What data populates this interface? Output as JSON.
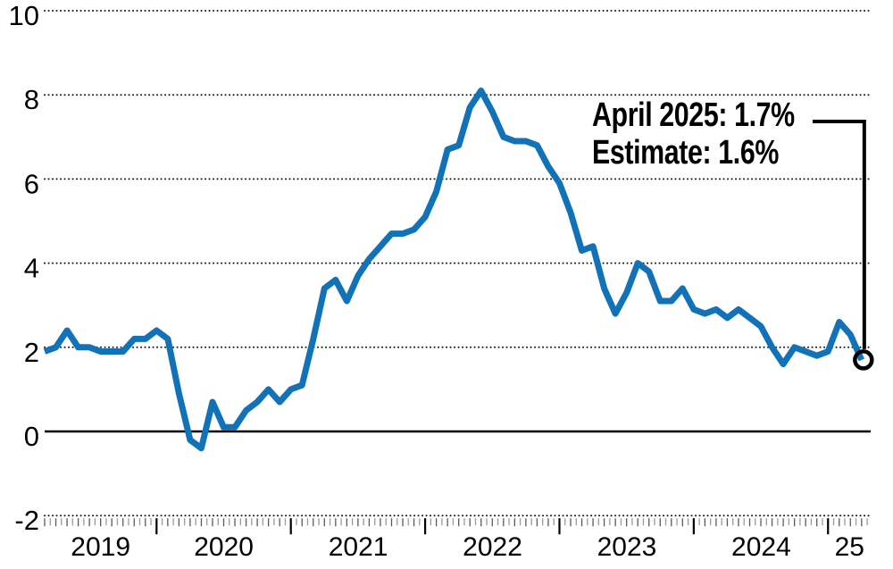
{
  "chart_data": {
    "type": "line",
    "title": "",
    "xlabel": "",
    "ylabel": "",
    "x_start_month": "2019-03",
    "x_end_month": "2025-04",
    "x_tick_labels": [
      "2019",
      "2020",
      "2021",
      "2022",
      "2023",
      "2024",
      "25"
    ],
    "y_ticks": [
      {
        "label": "10",
        "value": 10,
        "style": "dotted"
      },
      {
        "label": "8",
        "value": 8,
        "style": "dotted"
      },
      {
        "label": "6",
        "value": 6,
        "style": "dotted"
      },
      {
        "label": "4",
        "value": 4,
        "style": "dotted"
      },
      {
        "label": "2",
        "value": 2,
        "style": "dotted"
      },
      {
        "label": "0",
        "value": 0,
        "style": "solid"
      },
      {
        "label": "-2",
        "value": -2,
        "style": "dotted"
      }
    ],
    "ylim": [
      -2,
      10
    ],
    "grid": "horizontal-dotted",
    "series": [
      {
        "name": "inflation-yoy-percent",
        "color": "#1272b7",
        "values": [
          1.9,
          2.0,
          2.4,
          2.0,
          2.0,
          1.9,
          1.9,
          1.9,
          2.2,
          2.2,
          2.4,
          2.2,
          0.9,
          -0.2,
          -0.4,
          0.7,
          0.1,
          0.1,
          0.5,
          0.7,
          1.0,
          0.7,
          1.0,
          1.1,
          2.2,
          3.4,
          3.6,
          3.1,
          3.7,
          4.1,
          4.4,
          4.7,
          4.7,
          4.8,
          5.1,
          5.7,
          6.7,
          6.8,
          7.7,
          8.1,
          7.6,
          7.0,
          6.9,
          6.9,
          6.8,
          6.3,
          5.9,
          5.2,
          4.3,
          4.4,
          3.4,
          2.8,
          3.3,
          4.0,
          3.8,
          3.1,
          3.1,
          3.4,
          2.9,
          2.8,
          2.9,
          2.7,
          2.9,
          2.7,
          2.5,
          2.0,
          1.6,
          2.0,
          1.9,
          1.8,
          1.9,
          2.6,
          2.3,
          1.7
        ]
      }
    ],
    "annotation": {
      "line1": "April 2025: 1.7%",
      "line2": "Estimate: 1.6%",
      "marker_value": 1.7
    },
    "colors": {
      "line": "#1272b7",
      "axis_text": "#000000",
      "grid_dots": "#1a1a1a",
      "zero_line": "#000000",
      "minor_tick_dark": "#5a5a5a",
      "minor_tick_light": "#9a9a9a",
      "year_tick": "#000000",
      "connector": "#000000",
      "marker_ring": "#000000"
    }
  }
}
